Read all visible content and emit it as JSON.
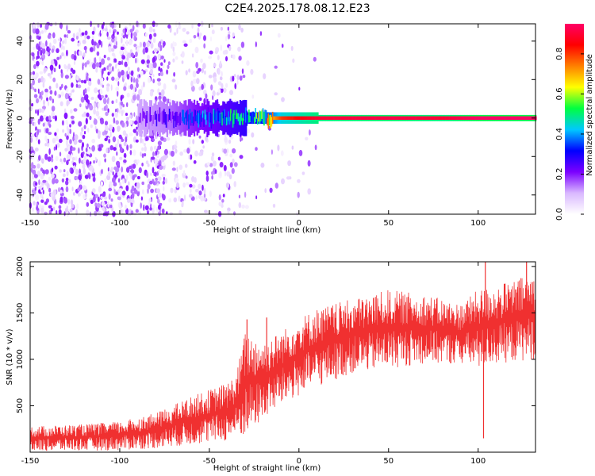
{
  "figure": {
    "title": "C2E4.2025.178.08.12.E23"
  },
  "chart_data": [
    {
      "type": "heatmap",
      "title": "C2E4.2025.178.08.12.E23",
      "xlabel": "Height of straight line (km)",
      "ylabel": "Frequency (Hz)",
      "xlim": [
        -150,
        132
      ],
      "ylim": [
        -50,
        49
      ],
      "x_ticks": [
        -150,
        -100,
        -50,
        0,
        50,
        100
      ],
      "y_ticks": [
        -40,
        -20,
        0,
        20,
        40
      ],
      "grid": false,
      "colorbar": {
        "label": "Normalized spectral amplitude",
        "range": [
          0,
          0.95
        ],
        "ticks": [
          0.0,
          0.2,
          0.4,
          0.6,
          0.8
        ],
        "colormap": [
          "#ffffff",
          "#d9b8ff",
          "#7b00ff",
          "#0000ff",
          "#00c8ff",
          "#00ff40",
          "#ffff00",
          "#ff8000",
          "#ff0000",
          "#ff0066"
        ]
      },
      "description_points": {
        "ridge_frequency_hz": 0,
        "ridge_amplitude_by_height": [
          [
            -150,
            0.18
          ],
          [
            -100,
            0.18
          ],
          [
            -75,
            0.25
          ],
          [
            -60,
            0.35
          ],
          [
            -50,
            0.4
          ],
          [
            -40,
            0.45
          ],
          [
            -30,
            0.5
          ],
          [
            -20,
            0.6
          ],
          [
            -10,
            0.8
          ],
          [
            0,
            0.85
          ],
          [
            10,
            0.9
          ],
          [
            50,
            0.92
          ],
          [
            80,
            0.9
          ],
          [
            100,
            0.95
          ],
          [
            132,
            0.95
          ]
        ],
        "noise_extent_height_km": [
          -150,
          -30
        ]
      }
    },
    {
      "type": "line",
      "xlabel": "Height of straight line (km)",
      "ylabel": "SNR (10 * v/v)",
      "xlim": [
        -150,
        132
      ],
      "ylim": [
        0,
        2050
      ],
      "x_ticks": [
        -150,
        -100,
        -50,
        0,
        50,
        100
      ],
      "y_ticks": [
        500,
        1000,
        1500,
        2000
      ],
      "grid": false,
      "color": "#f03030",
      "series": [
        {
          "envelope_low": [
            [
              -150,
              10
            ],
            [
              -100,
              20
            ],
            [
              -80,
              40
            ],
            [
              -60,
              80
            ],
            [
              -40,
              120
            ],
            [
              -30,
              160
            ],
            [
              -25,
              250
            ],
            [
              -20,
              350
            ],
            [
              -10,
              500
            ],
            [
              0,
              600
            ],
            [
              10,
              700
            ],
            [
              30,
              850
            ],
            [
              50,
              900
            ],
            [
              70,
              950
            ],
            [
              90,
              950
            ],
            [
              100,
              900
            ],
            [
              110,
              950
            ],
            [
              132,
              1000
            ]
          ],
          "envelope_high": [
            [
              -150,
              280
            ],
            [
              -120,
              300
            ],
            [
              -100,
              330
            ],
            [
              -80,
              420
            ],
            [
              -60,
              600
            ],
            [
              -40,
              750
            ],
            [
              -35,
              850
            ],
            [
              -30,
              1300
            ],
            [
              -20,
              1200
            ],
            [
              -10,
              1300
            ],
            [
              0,
              1450
            ],
            [
              10,
              1550
            ],
            [
              30,
              1650
            ],
            [
              50,
              1750
            ],
            [
              70,
              1700
            ],
            [
              90,
              1600
            ],
            [
              100,
              1750
            ],
            [
              120,
              1850
            ],
            [
              132,
              1950
            ]
          ],
          "spikes": [
            [
              -29,
              1430
            ],
            [
              -18,
              1450
            ],
            [
              104,
              2060
            ],
            [
              127,
              2080
            ],
            [
              103,
              150
            ]
          ]
        }
      ]
    }
  ]
}
